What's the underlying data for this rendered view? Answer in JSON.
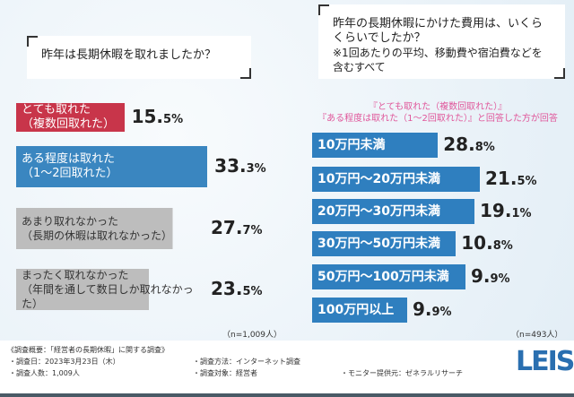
{
  "chart_data": [
    {
      "type": "bar",
      "title": "昨年は長期休暇を取れましたか？",
      "categories": [
        "とても取れた（複数回取れた）",
        "ある程度は取れた（1〜2回取れた）",
        "あまり取れなかった（長期の休暇は取れなかった）",
        "まったく取れなかった（年間を通して数日しか取れなかった）"
      ],
      "values": [
        15.5,
        33.3,
        27.7,
        23.5
      ],
      "unit": "%",
      "colors": [
        "#c8354a",
        "#3a86c0",
        "#bdbdbd",
        "#bdbdbd"
      ],
      "n": "（n=1,009人）"
    },
    {
      "type": "bar",
      "title": "昨年の長期休暇にかけた費用は、いくらくらいでしたか？",
      "subtitle": "※1回あたりの平均、移動費や宿泊費などを含むすべて",
      "note1": "『とても取れた（複数回取れた）』",
      "note2": "『ある程度は取れた（1〜2回取れた）』と回答した方が回答",
      "categories": [
        "10万円未満",
        "10万円〜20万円未満",
        "20万円〜30万円未満",
        "30万円〜50万円未満",
        "50万円〜100万円未満",
        "100万円以上"
      ],
      "values": [
        28.8,
        21.5,
        19.1,
        10.8,
        9.9,
        9.9
      ],
      "unit": "%",
      "color": "#2f7fbf",
      "n": "（n=493人）"
    }
  ],
  "footer": {
    "title": "《調査概要：「経営者の長期休暇」に関する調査》",
    "date": "・調査日：2023年3月23日（木）",
    "count": "・調査人数：1,009人",
    "method": "・調査方法：インターネット調査",
    "target": "・調査対象：経営者",
    "provider": "・モニター提供元：ゼネラルリサーチ",
    "logo": "LEIS"
  }
}
